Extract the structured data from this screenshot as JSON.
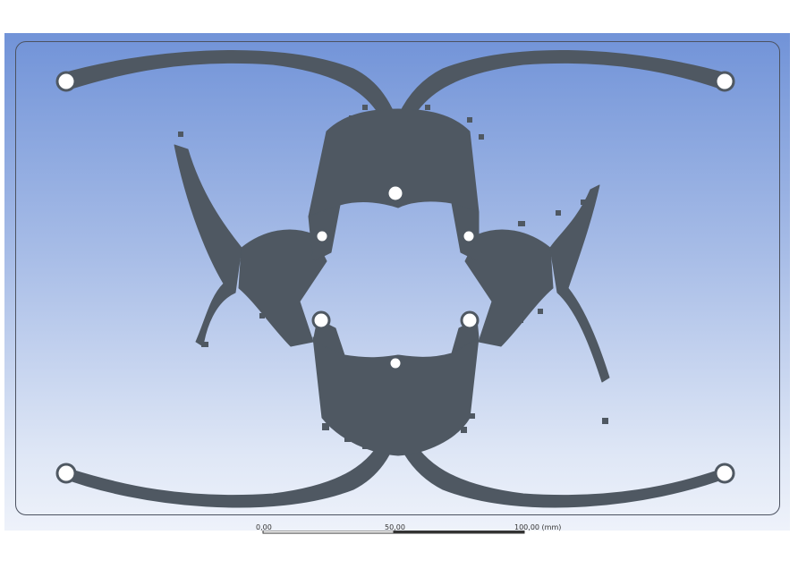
{
  "viewport": {
    "colors": {
      "background_top": "#7193d8",
      "background_bottom": "#eef2fa",
      "model_fill": "#4f5862",
      "hole_fill": "#ffffff"
    },
    "model": {
      "description_shape": "topology-optimized-structure",
      "holes": 10
    }
  },
  "ruler": {
    "labels": [
      "0,00",
      "50,00",
      "100,00 (mm)"
    ]
  }
}
